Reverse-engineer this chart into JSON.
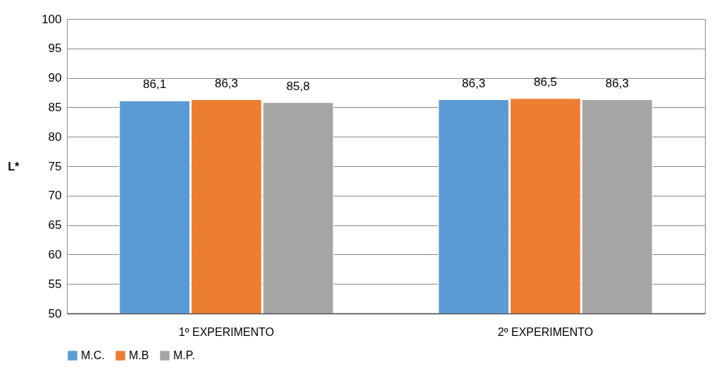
{
  "chart_data": {
    "type": "bar",
    "ylabel": "L*",
    "categories": [
      "1º  EXPERIMENTO",
      "2º  EXPERIMENTO"
    ],
    "series": [
      {
        "name": "M.C.",
        "color": "#5b9bd5",
        "values": [
          86.1,
          86.3
        ],
        "value_labels": [
          "86,1",
          "86,3"
        ]
      },
      {
        "name": "M.B",
        "color": "#ed7d31",
        "values": [
          86.3,
          86.5
        ],
        "value_labels": [
          "86,3",
          "86,5"
        ]
      },
      {
        "name": "M.P.",
        "color": "#a5a5a5",
        "values": [
          85.8,
          86.3
        ],
        "value_labels": [
          "85,8",
          "86,3"
        ]
      }
    ],
    "ylim": [
      50,
      100
    ],
    "yticks": [
      50,
      55,
      60,
      65,
      70,
      75,
      80,
      85,
      90,
      95,
      100
    ],
    "grid": "y",
    "legend": "bottom"
  }
}
